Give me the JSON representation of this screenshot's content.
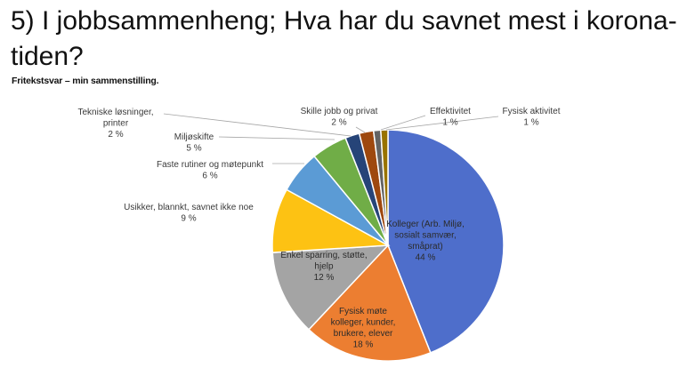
{
  "header": {
    "title": "5) I jobbsammenheng; Hva har du savnet mest i korona-tiden?",
    "subtitle": "Fritekstsvar – min sammenstilling."
  },
  "chart_data": {
    "type": "pie",
    "title": "",
    "start_angle_deg": 0,
    "direction": "clockwise",
    "slices": [
      {
        "label": "Kolleger (Arb. Miljø, sosialt samvær, småprat)",
        "value": 44,
        "pct_label": "44 %",
        "color": "#4E6ECB",
        "label_lines": [
          "Kolleger (Arb. Miljø,",
          "sosialt samvær,",
          "småprat)"
        ]
      },
      {
        "label": "Fysisk møte kolleger, kunder, brukere, elever",
        "value": 18,
        "pct_label": "18 %",
        "color": "#EC7E31",
        "label_lines": [
          "Fysisk møte",
          "kolleger, kunder,",
          "brukere, elever"
        ]
      },
      {
        "label": "Enkel sparring, støtte, hjelp",
        "value": 12,
        "pct_label": "12 %",
        "color": "#A4A4A4",
        "label_lines": [
          "Enkel sparring, støtte,",
          "hjelp"
        ]
      },
      {
        "label": "Usikker, blannkt, savnet ikke noe",
        "value": 9,
        "pct_label": "9 %",
        "color": "#FDC213",
        "label_lines": [
          "Usikker, blannkt, savnet ikke noe"
        ]
      },
      {
        "label": "Faste rutiner og møtepunkt",
        "value": 6,
        "pct_label": "6 %",
        "color": "#5B9BD5",
        "label_lines": [
          "Faste rutiner og møtepunkt"
        ]
      },
      {
        "label": "Miljøskifte",
        "value": 5,
        "pct_label": "5 %",
        "color": "#70AD47",
        "label_lines": [
          "Miljøskifte"
        ]
      },
      {
        "label": "Tekniske løsninger, printer",
        "value": 2,
        "pct_label": "2 %",
        "color": "#264478",
        "label_lines": [
          "Tekniske løsninger,",
          "printer"
        ]
      },
      {
        "label": "Skille jobb og privat",
        "value": 2,
        "pct_label": "2 %",
        "color": "#9E480E",
        "label_lines": [
          "Skille jobb og privat"
        ]
      },
      {
        "label": "Effektivitet",
        "value": 1,
        "pct_label": "1 %",
        "color": "#636363",
        "label_lines": [
          "Effektivitet"
        ]
      },
      {
        "label": "Fysisk aktivitet",
        "value": 1,
        "pct_label": "1 %",
        "color": "#997300",
        "label_lines": [
          "Fysisk aktivitet"
        ]
      }
    ],
    "legend": "none"
  }
}
